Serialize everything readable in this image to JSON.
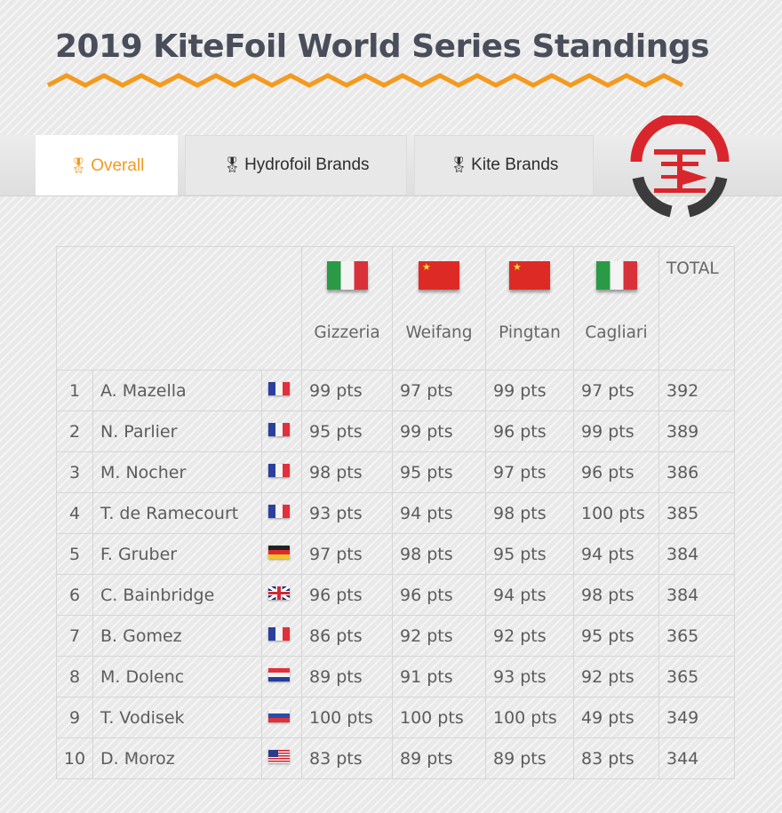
{
  "title": "2019 KiteFoil World Series Standings",
  "accent_color": "#f39a1f",
  "tabs": [
    {
      "label": "Overall",
      "icon": "medal-icon",
      "active": true
    },
    {
      "label": "Hydrofoil Brands",
      "icon": "medal-icon",
      "active": false
    },
    {
      "label": "Kite Brands",
      "icon": "medal-icon",
      "active": false
    }
  ],
  "logo": {
    "icon": "ikf-logo-icon",
    "colors": [
      "#d9262c",
      "#3b3b3b"
    ]
  },
  "table": {
    "venues": [
      {
        "name": "Gizzeria",
        "flag": "italy"
      },
      {
        "name": "Weifang",
        "flag": "china"
      },
      {
        "name": "Pingtan",
        "flag": "china"
      },
      {
        "name": "Cagliari",
        "flag": "italy"
      }
    ],
    "total_label": "TOTAL",
    "rows": [
      {
        "rank": "1",
        "name": "A. Mazella",
        "flag": "france",
        "scores": [
          "99 pts",
          "97 pts",
          "99 pts",
          "97 pts"
        ],
        "total": "392"
      },
      {
        "rank": "2",
        "name": "N. Parlier",
        "flag": "france",
        "scores": [
          "95 pts",
          "99 pts",
          "96 pts",
          "99 pts"
        ],
        "total": "389"
      },
      {
        "rank": "3",
        "name": "M. Nocher",
        "flag": "france",
        "scores": [
          "98 pts",
          "95 pts",
          "97 pts",
          "96 pts"
        ],
        "total": "386"
      },
      {
        "rank": "4",
        "name": "T. de Ramecourt",
        "flag": "france",
        "scores": [
          "93 pts",
          "94 pts",
          "98 pts",
          "100 pts"
        ],
        "total": "385"
      },
      {
        "rank": "5",
        "name": "F. Gruber",
        "flag": "germany",
        "scores": [
          "97 pts",
          "98 pts",
          "95 pts",
          "94 pts"
        ],
        "total": "384"
      },
      {
        "rank": "6",
        "name": "C. Bainbridge",
        "flag": "uk",
        "scores": [
          "96 pts",
          "96 pts",
          "94 pts",
          "98 pts"
        ],
        "total": "384"
      },
      {
        "rank": "7",
        "name": "B. Gomez",
        "flag": "france",
        "scores": [
          "86 pts",
          "92 pts",
          "92 pts",
          "95 pts"
        ],
        "total": "365"
      },
      {
        "rank": "8",
        "name": "M. Dolenc",
        "flag": "croatia",
        "scores": [
          "89 pts",
          "91 pts",
          "93 pts",
          "92 pts"
        ],
        "total": "365"
      },
      {
        "rank": "9",
        "name": "T. Vodisek",
        "flag": "slovenia",
        "scores": [
          "100 pts",
          "100 pts",
          "100 pts",
          "49 pts"
        ],
        "total": "349"
      },
      {
        "rank": "10",
        "name": "D. Moroz",
        "flag": "usa",
        "scores": [
          "83 pts",
          "89 pts",
          "89 pts",
          "83 pts"
        ],
        "total": "344"
      }
    ]
  }
}
